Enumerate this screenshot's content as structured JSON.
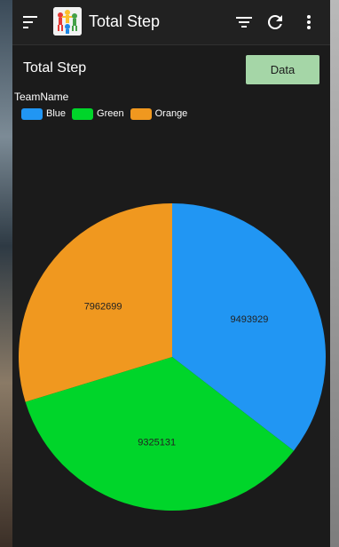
{
  "toolbar": {
    "title": "Total Step",
    "menu_icon": "hamburger-menu-icon",
    "filter_icon": "filter-icon",
    "refresh_icon": "refresh-icon",
    "more_icon": "more-vert-icon"
  },
  "section": {
    "title": "Total Step",
    "data_button_label": "Data"
  },
  "chart_data": {
    "type": "pie",
    "legend_title": "TeamName",
    "legend_position": "top-left",
    "categories": [
      "Blue",
      "Green",
      "Orange"
    ],
    "values": [
      9493929,
      9325131,
      7962699
    ],
    "colors": [
      "#2196f3",
      "#00d52a",
      "#f0981f"
    ],
    "data_labels": [
      "9493929",
      "9325131",
      "7962699"
    ],
    "label_color": "#222222"
  }
}
